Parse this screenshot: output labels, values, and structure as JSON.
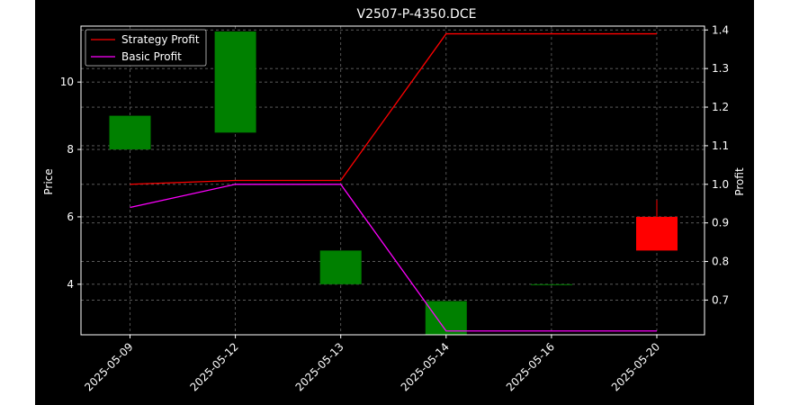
{
  "chart_data": {
    "type": "candlestick",
    "title": "V2507-P-4350.DCE",
    "xlabel": "",
    "ylabel": "Price",
    "y2label": "Profit",
    "categories": [
      "2025-05-09",
      "2025-05-12",
      "2025-05-13",
      "2025-05-14",
      "2025-05-16",
      "2025-05-20"
    ],
    "candles": [
      {
        "date": "2025-05-09",
        "open": 8.0,
        "high": 9.0,
        "low": 8.0,
        "close": 9.0
      },
      {
        "date": "2025-05-12",
        "open": 8.5,
        "high": 11.5,
        "low": 8.5,
        "close": 11.5
      },
      {
        "date": "2025-05-13",
        "open": 4.0,
        "high": 5.0,
        "low": 4.0,
        "close": 5.0
      },
      {
        "date": "2025-05-14",
        "open": 2.5,
        "high": 3.5,
        "low": 2.5,
        "close": 3.5
      },
      {
        "date": "2025-05-16",
        "open": 4.0,
        "high": 4.0,
        "low": 4.0,
        "close": 4.0
      },
      {
        "date": "2025-05-20",
        "open": 6.0,
        "high": 6.5,
        "low": 5.0,
        "close": 5.0
      }
    ],
    "series": [
      {
        "name": "Strategy Profit",
        "axis": "right",
        "color": "#ff0000",
        "values": [
          1.0,
          1.01,
          1.01,
          1.39,
          1.39,
          1.39
        ]
      },
      {
        "name": "Basic Profit",
        "axis": "right",
        "color": "#ff00ff",
        "values": [
          0.94,
          1.0,
          1.0,
          0.62,
          0.62,
          0.62
        ]
      }
    ],
    "ylim": [
      2.5,
      11.5
    ],
    "y2lim": [
      0.61,
      1.41
    ],
    "yticks": [
      4,
      6,
      8,
      10
    ],
    "y2ticks": [
      0.7,
      0.8,
      0.9,
      1.0,
      1.1,
      1.2,
      1.3,
      1.4
    ],
    "grid": true,
    "legend_position": "top-left",
    "colors": {
      "background": "#000000",
      "up": "#008000",
      "down": "#ff0000",
      "text": "#ffffff",
      "grid": "#666666"
    }
  }
}
